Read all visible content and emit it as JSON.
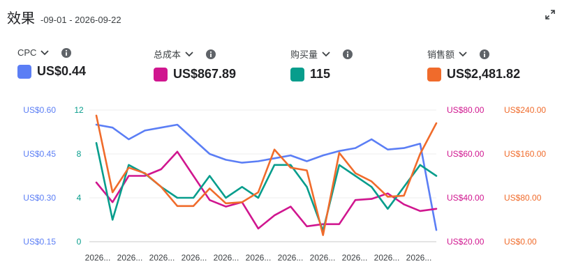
{
  "title": "效果",
  "date_range": "-09-01 - 2026-09-22",
  "metrics": [
    {
      "label": "CPC",
      "value": "US$0.44",
      "color": "#5b7ef5",
      "icon": "info-icon"
    },
    {
      "label": "总成本",
      "value": "US$867.89",
      "color": "#d0168f",
      "icon": "info-icon"
    },
    {
      "label": "购买量",
      "value": "115",
      "color": "#079d8c",
      "icon": "info-icon"
    },
    {
      "label": "销售额",
      "value": "US$2,481.82",
      "color": "#f06b2b",
      "icon": "info-icon"
    }
  ],
  "chart_data": {
    "type": "line",
    "x_tick_labels": [
      "2026...",
      "2026...",
      "2026...",
      "2026...",
      "2026...",
      "2026...",
      "2026...",
      "2026...",
      "2026...",
      "2026...",
      "2026..."
    ],
    "axes": [
      {
        "series": "CPC",
        "ticks": [
          "US$0.60",
          "US$0.45",
          "US$0.30",
          "US$0.15"
        ],
        "range": [
          0.15,
          0.6
        ],
        "color": "#5b7ef5"
      },
      {
        "series": "购买量",
        "ticks": [
          "12",
          "8",
          "4",
          "0"
        ],
        "range": [
          0,
          12
        ],
        "color": "#079d8c"
      },
      {
        "series": "总成本",
        "ticks": [
          "US$80.00",
          "US$60.00",
          "US$40.00",
          "US$20.00"
        ],
        "range": [
          20,
          80
        ],
        "color": "#d0168f"
      },
      {
        "series": "销售额",
        "ticks": [
          "US$240.00",
          "US$160.00",
          "US$80.00",
          "US$0.00"
        ],
        "range": [
          0,
          240
        ],
        "color": "#f06b2b"
      }
    ],
    "series": [
      {
        "name": "CPC",
        "axis": 0,
        "color": "#5b7ef5",
        "values": [
          0.55,
          0.54,
          0.5,
          0.53,
          0.54,
          0.55,
          0.5,
          0.45,
          0.43,
          0.42,
          0.425,
          0.435,
          0.445,
          0.425,
          0.445,
          0.46,
          0.47,
          0.5,
          0.465,
          0.47,
          0.485,
          0.19
        ]
      },
      {
        "name": "总成本",
        "axis": 2,
        "color": "#d0168f",
        "values": [
          47,
          38,
          50,
          50,
          53,
          61,
          50,
          39,
          36,
          38,
          26,
          32,
          36,
          27,
          28,
          28,
          39,
          39.5,
          42,
          37,
          34,
          35
        ]
      },
      {
        "name": "购买量",
        "axis": 1,
        "color": "#079d8c",
        "values": [
          9,
          2,
          7,
          6.2,
          5,
          4,
          4,
          6,
          4,
          5,
          4,
          7,
          7,
          5,
          1,
          7,
          6,
          5,
          3,
          5,
          7,
          6
        ]
      },
      {
        "name": "销售额",
        "axis": 3,
        "color": "#f06b2b",
        "values": [
          230,
          90,
          135,
          125,
          100,
          65,
          65,
          97,
          70,
          72,
          90,
          168,
          135,
          130,
          12,
          162,
          125,
          110,
          82,
          84,
          160,
          216
        ]
      }
    ]
  }
}
